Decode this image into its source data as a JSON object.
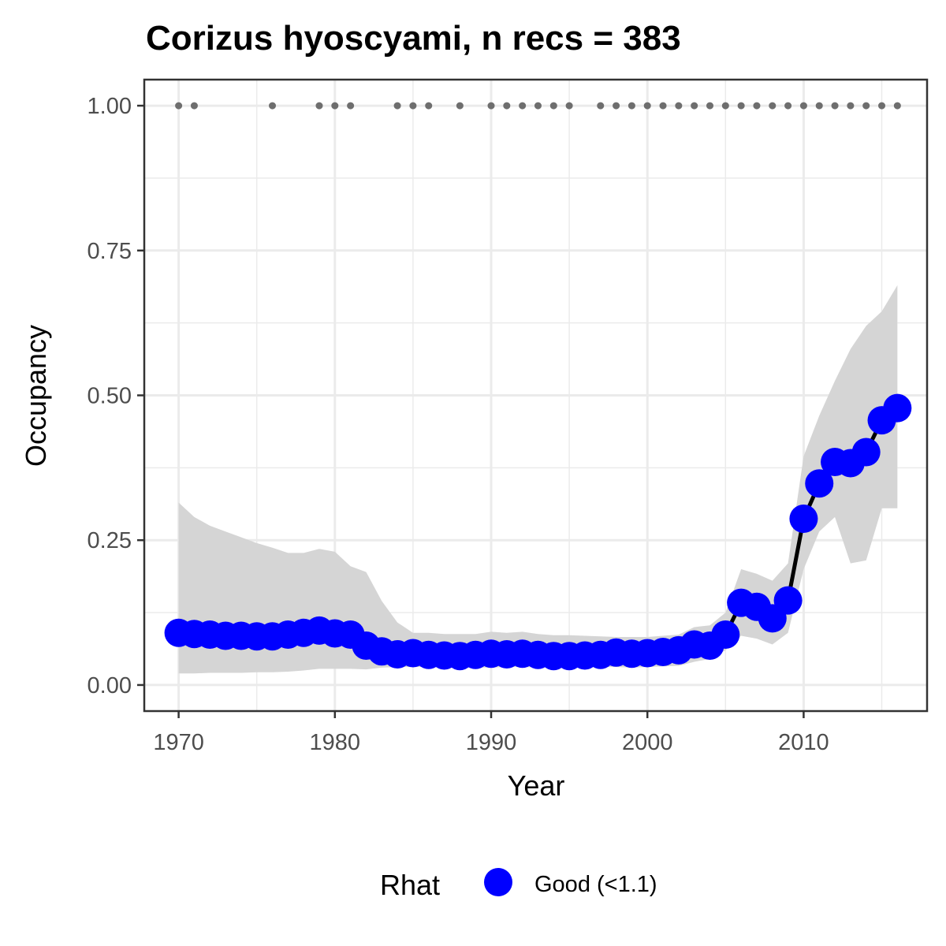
{
  "chart_data": {
    "type": "line",
    "title": "Corizus hyoscyami, n recs = 383",
    "xlabel": "Year",
    "ylabel": "Occupancy",
    "xlim": [
      1967.8,
      2017.9
    ],
    "ylim": [
      -0.045,
      1.045
    ],
    "x_ticks": [
      1970,
      1980,
      1990,
      2000,
      2010
    ],
    "x_tick_labels": [
      "1970",
      "1980",
      "1990",
      "2000",
      "2010"
    ],
    "y_ticks": [
      0,
      0.25,
      0.5,
      0.75,
      1.0
    ],
    "y_tick_labels": [
      "0.00",
      "0.25",
      "0.50",
      "0.75",
      "1.00"
    ],
    "grid": true,
    "legend_position": "bottom",
    "legend": {
      "title": "Rhat",
      "entries": [
        {
          "label": "Good (<1.1)",
          "color": "#0000ff"
        }
      ]
    },
    "colors": {
      "point": "#0000ff",
      "line": "#000000",
      "ribbon": "#d5d5d5",
      "record_dot": "#6e6e6e",
      "grid": "#ebebeb",
      "border": "#333333"
    },
    "years": [
      1970,
      1971,
      1972,
      1973,
      1974,
      1975,
      1976,
      1977,
      1978,
      1979,
      1980,
      1981,
      1982,
      1983,
      1984,
      1985,
      1986,
      1987,
      1988,
      1989,
      1990,
      1991,
      1992,
      1993,
      1994,
      1995,
      1996,
      1997,
      1998,
      1999,
      2000,
      2001,
      2002,
      2003,
      2004,
      2005,
      2006,
      2007,
      2008,
      2009,
      2010,
      2011,
      2012,
      2013,
      2014,
      2015,
      2016
    ],
    "series": [
      {
        "values": [
          0.09,
          0.088,
          0.087,
          0.085,
          0.085,
          0.084,
          0.084,
          0.087,
          0.09,
          0.094,
          0.089,
          0.087,
          0.068,
          0.058,
          0.053,
          0.055,
          0.052,
          0.051,
          0.05,
          0.052,
          0.054,
          0.053,
          0.054,
          0.052,
          0.05,
          0.05,
          0.051,
          0.052,
          0.056,
          0.054,
          0.055,
          0.057,
          0.06,
          0.07,
          0.068,
          0.087,
          0.142,
          0.135,
          0.115,
          0.146,
          0.287,
          0.348,
          0.385,
          0.383,
          0.402,
          0.457,
          0.478
        ]
      }
    ],
    "ribbon_lower": [
      0.02,
      0.02,
      0.021,
      0.021,
      0.021,
      0.022,
      0.022,
      0.023,
      0.025,
      0.028,
      0.028,
      0.028,
      0.027,
      0.03,
      0.031,
      0.031,
      0.031,
      0.03,
      0.029,
      0.03,
      0.03,
      0.031,
      0.031,
      0.03,
      0.031,
      0.03,
      0.03,
      0.031,
      0.031,
      0.03,
      0.031,
      0.032,
      0.033,
      0.04,
      0.045,
      0.06,
      0.085,
      0.08,
      0.07,
      0.09,
      0.2,
      0.265,
      0.29,
      0.21,
      0.215,
      0.305,
      0.305
    ],
    "ribbon_upper": [
      0.315,
      0.29,
      0.275,
      0.265,
      0.255,
      0.245,
      0.237,
      0.228,
      0.228,
      0.235,
      0.23,
      0.205,
      0.195,
      0.145,
      0.108,
      0.09,
      0.09,
      0.088,
      0.088,
      0.088,
      0.092,
      0.09,
      0.092,
      0.088,
      0.086,
      0.086,
      0.085,
      0.084,
      0.083,
      0.083,
      0.083,
      0.085,
      0.087,
      0.1,
      0.103,
      0.125,
      0.2,
      0.192,
      0.18,
      0.21,
      0.395,
      0.465,
      0.525,
      0.58,
      0.62,
      0.645,
      0.69
    ],
    "record_years": [
      1970,
      1971,
      1976,
      1979,
      1980,
      1981,
      1984,
      1985,
      1986,
      1988,
      1990,
      1991,
      1992,
      1993,
      1994,
      1995,
      1997,
      1998,
      1999,
      2000,
      2001,
      2002,
      2003,
      2004,
      2005,
      2006,
      2007,
      2008,
      2009,
      2010,
      2011,
      2012,
      2013,
      2014,
      2015,
      2016
    ],
    "record_value": 1.0
  }
}
